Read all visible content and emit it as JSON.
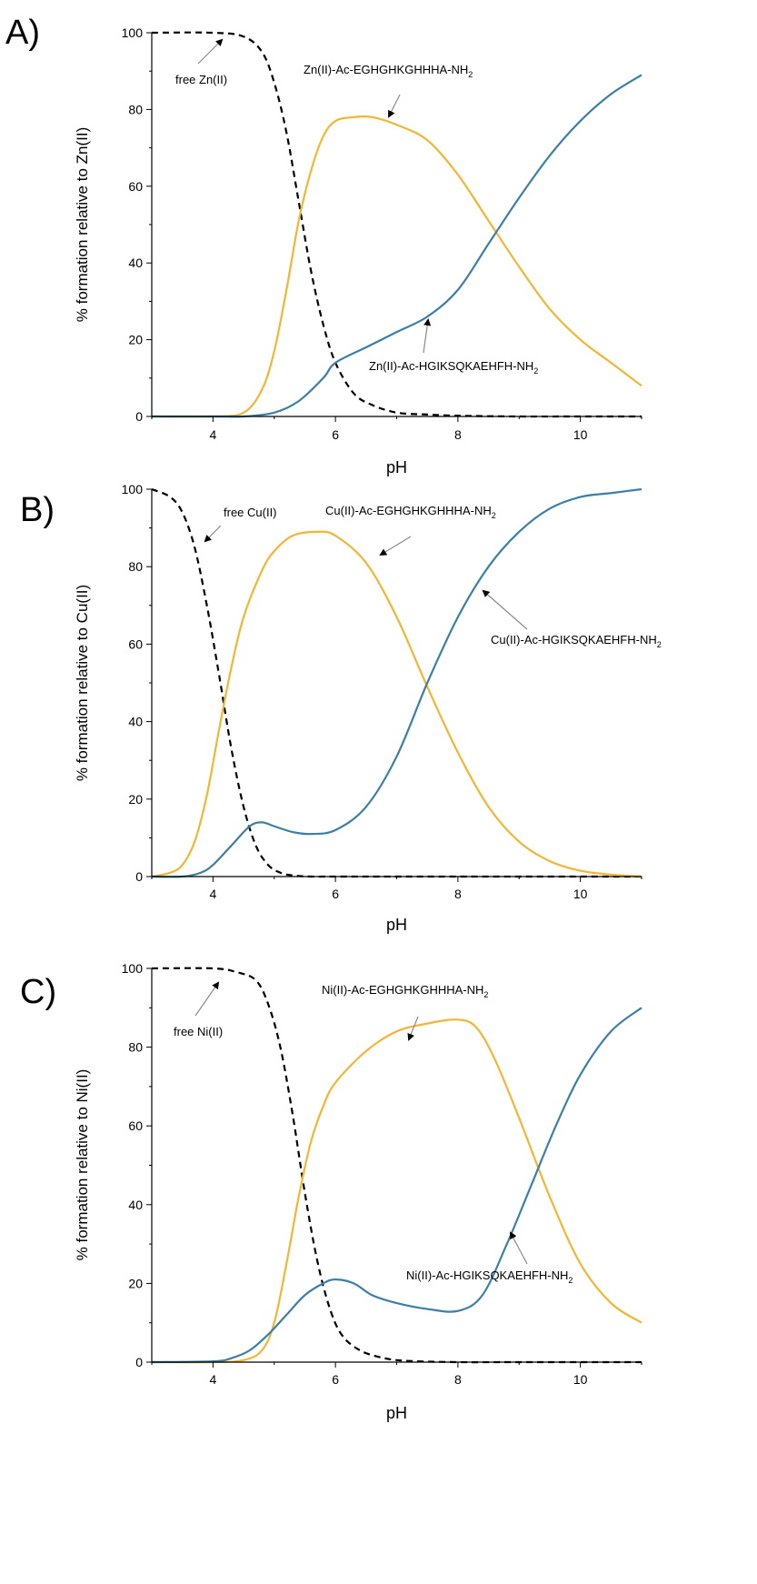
{
  "chart_data": [
    {
      "type": "line",
      "panel_label": "A)",
      "xlabel": "pH",
      "ylabel": "% formation relative to Zn(II)",
      "xlim": [
        3,
        11
      ],
      "ylim": [
        0,
        100
      ],
      "xticks": [
        "4",
        "6",
        "8",
        "10"
      ],
      "yticks": [
        "0",
        "20",
        "40",
        "60",
        "80",
        "100"
      ],
      "series": [
        {
          "name": "free Zn(II)",
          "color": "#000000",
          "style": "dashed",
          "x": [
            3,
            4,
            4.5,
            4.8,
            5.0,
            5.2,
            5.4,
            5.6,
            5.8,
            6.0,
            6.3,
            6.6,
            7.0,
            7.5,
            8,
            9,
            10,
            11
          ],
          "y": [
            100,
            100,
            99,
            95,
            87,
            74,
            56,
            38,
            24,
            14,
            6,
            3,
            1,
            0.5,
            0.2,
            0,
            0,
            0
          ]
        },
        {
          "name": "Zn(II)-Ac-EGHGHKGHHHA-NH",
          "sub": "2",
          "color": "#f4b533",
          "style": "solid",
          "x": [
            3,
            4,
            4.5,
            4.8,
            5.0,
            5.2,
            5.4,
            5.6,
            5.8,
            6.0,
            6.3,
            6.6,
            7.0,
            7.5,
            8.0,
            8.5,
            9.0,
            9.5,
            10.0,
            10.5,
            11
          ],
          "y": [
            0,
            0,
            1,
            7,
            17,
            33,
            51,
            64,
            73,
            77,
            78,
            78,
            76,
            72,
            63,
            51,
            39,
            28,
            20,
            14,
            8
          ]
        },
        {
          "name": "Zn(II)-Ac-HGIKSQKAEHFH-NH",
          "sub": "2",
          "color": "#3b7fa8",
          "style": "solid",
          "x": [
            3,
            4,
            4.5,
            5.0,
            5.4,
            5.8,
            6.0,
            6.5,
            7.0,
            7.5,
            8.0,
            8.5,
            9.0,
            9.5,
            10.0,
            10.5,
            11
          ],
          "y": [
            0,
            0,
            0,
            1,
            4,
            10,
            14,
            18,
            22,
            26,
            33,
            45,
            57,
            68,
            77,
            84,
            89
          ]
        }
      ],
      "annotations": [
        {
          "text": "free Zn(II)",
          "sub": "",
          "series": 0
        },
        {
          "text": "Zn(II)-Ac-EGHGHKGHHHA-NH",
          "sub": "2",
          "series": 1
        },
        {
          "text": "Zn(II)-Ac-HGIKSQKAEHFH-NH",
          "sub": "2",
          "series": 2
        }
      ]
    },
    {
      "type": "line",
      "panel_label": "B)",
      "xlabel": "pH",
      "ylabel": "% formation relative to Cu(II)",
      "xlim": [
        3,
        11
      ],
      "ylim": [
        0,
        100
      ],
      "xticks": [
        "4",
        "6",
        "8",
        "10"
      ],
      "yticks": [
        "0",
        "20",
        "40",
        "60",
        "80",
        "100"
      ],
      "series": [
        {
          "name": "free Cu(II)",
          "color": "#000000",
          "style": "dashed",
          "x": [
            3,
            3.3,
            3.5,
            3.7,
            3.9,
            4.1,
            4.3,
            4.5,
            4.7,
            4.9,
            5.1,
            5.3,
            5.6,
            6,
            8,
            11
          ],
          "y": [
            100,
            98,
            94,
            85,
            70,
            52,
            33,
            18,
            8,
            3,
            1,
            0.3,
            0,
            0,
            0,
            0
          ]
        },
        {
          "name": "Cu(II)-Ac-EGHGHKGHHHA-NH",
          "sub": "2",
          "color": "#f4b533",
          "style": "solid",
          "x": [
            3,
            3.3,
            3.5,
            3.7,
            3.9,
            4.1,
            4.3,
            4.5,
            4.8,
            5.0,
            5.3,
            5.7,
            6.0,
            6.5,
            7.0,
            7.5,
            8.0,
            8.5,
            9.0,
            9.5,
            10.0,
            10.5,
            11
          ],
          "y": [
            0,
            1,
            3,
            9,
            21,
            38,
            54,
            67,
            79,
            84,
            88,
            89,
            88,
            81,
            67,
            49,
            32,
            18,
            9,
            4,
            1.5,
            0.5,
            0
          ]
        },
        {
          "name": "Cu(II)-Ac-HGIKSQKAEHFH-NH",
          "sub": "2",
          "color": "#3b7fa8",
          "style": "solid",
          "x": [
            3,
            3.5,
            3.8,
            4.0,
            4.3,
            4.6,
            4.8,
            5.0,
            5.3,
            5.6,
            6.0,
            6.5,
            7.0,
            7.5,
            8.0,
            8.5,
            9.0,
            9.5,
            10.0,
            10.5,
            11
          ],
          "y": [
            0,
            0,
            1,
            3,
            8,
            13,
            14,
            13,
            11.5,
            11,
            12,
            18,
            31,
            50,
            67,
            80,
            89,
            95,
            98,
            99,
            100
          ]
        }
      ],
      "annotations": [
        {
          "text": "free Cu(II)",
          "sub": "",
          "series": 0
        },
        {
          "text": "Cu(II)-Ac-EGHGHKGHHHA-NH",
          "sub": "2",
          "series": 1
        },
        {
          "text": "Cu(II)-Ac-HGIKSQKAEHFH-NH",
          "sub": "2",
          "series": 2
        }
      ]
    },
    {
      "type": "line",
      "panel_label": "C)",
      "xlabel": "pH",
      "ylabel": "% formation relative to Ni(II)",
      "xlim": [
        3,
        11
      ],
      "ylim": [
        0,
        100
      ],
      "xticks": [
        "4",
        "6",
        "8",
        "10"
      ],
      "yticks": [
        "0",
        "20",
        "40",
        "60",
        "80",
        "100"
      ],
      "series": [
        {
          "name": "free Ni(II)",
          "color": "#000000",
          "style": "dashed",
          "x": [
            3,
            4,
            4.4,
            4.7,
            4.9,
            5.1,
            5.3,
            5.5,
            5.7,
            5.9,
            6.1,
            6.4,
            6.8,
            7.2,
            8,
            9,
            11
          ],
          "y": [
            100,
            100,
            99,
            97,
            91,
            80,
            63,
            43,
            26,
            14,
            7,
            3,
            1,
            0.3,
            0,
            0,
            0
          ]
        },
        {
          "name": "Ni(II)-Ac-EGHGHKGHHHA-NH",
          "sub": "2",
          "color": "#f4b533",
          "style": "solid",
          "x": [
            3,
            4,
            4.5,
            4.8,
            5.0,
            5.2,
            5.4,
            5.6,
            5.8,
            6.0,
            6.5,
            7.0,
            7.5,
            8.0,
            8.3,
            8.6,
            9.0,
            9.5,
            10.0,
            10.5,
            11
          ],
          "y": [
            0,
            0,
            0.5,
            3,
            10,
            25,
            42,
            56,
            65,
            71,
            79,
            84,
            86,
            87,
            85,
            77,
            62,
            42,
            25,
            15,
            10
          ]
        },
        {
          "name": "Ni(II)-Ac-HGIKSQKAEHFH-NH",
          "sub": "2",
          "color": "#3b7fa8",
          "style": "solid",
          "x": [
            3,
            4,
            4.3,
            4.6,
            4.9,
            5.2,
            5.5,
            5.8,
            6.0,
            6.3,
            6.6,
            7.0,
            7.5,
            8.0,
            8.4,
            8.8,
            9.2,
            9.6,
            10.0,
            10.5,
            11
          ],
          "y": [
            0,
            0.2,
            1,
            3,
            7,
            12,
            17,
            20,
            21,
            20,
            17,
            15,
            13.5,
            13,
            17,
            30,
            45,
            60,
            73,
            84,
            90
          ]
        }
      ],
      "annotations": [
        {
          "text": "free Ni(II)",
          "sub": "",
          "series": 0
        },
        {
          "text": "Ni(II)-Ac-EGHGHKGHHHA-NH",
          "sub": "2",
          "series": 1
        },
        {
          "text": "Ni(II)-Ac-HGIKSQKAEHFH-NH",
          "sub": "2",
          "series": 2
        }
      ]
    }
  ]
}
